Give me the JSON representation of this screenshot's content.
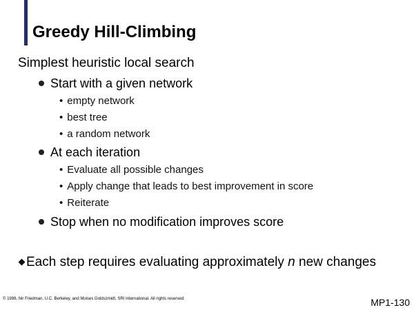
{
  "slide": {
    "title": "Greedy Hill-Climbing",
    "intro": "Simplest heuristic local search",
    "items": [
      {
        "text": "Start with a given network",
        "subitems": [
          "empty network",
          "best tree",
          "a random network"
        ]
      },
      {
        "text": "At each iteration",
        "subitems": [
          "Evaluate all possible changes",
          "Apply change that leads to best improvement in score",
          "Reiterate"
        ]
      },
      {
        "text": "Stop when no modification improves score",
        "subitems": []
      }
    ],
    "note": {
      "before": "Each step requires evaluating approximately ",
      "italic": "n",
      "after": " new changes"
    },
    "footer": "© 1998, Nir Friedman, U.C. Berkeley, and Moises Goldszmidt, SRI International. All rights reserved.",
    "slide_number": "MP1-130"
  }
}
